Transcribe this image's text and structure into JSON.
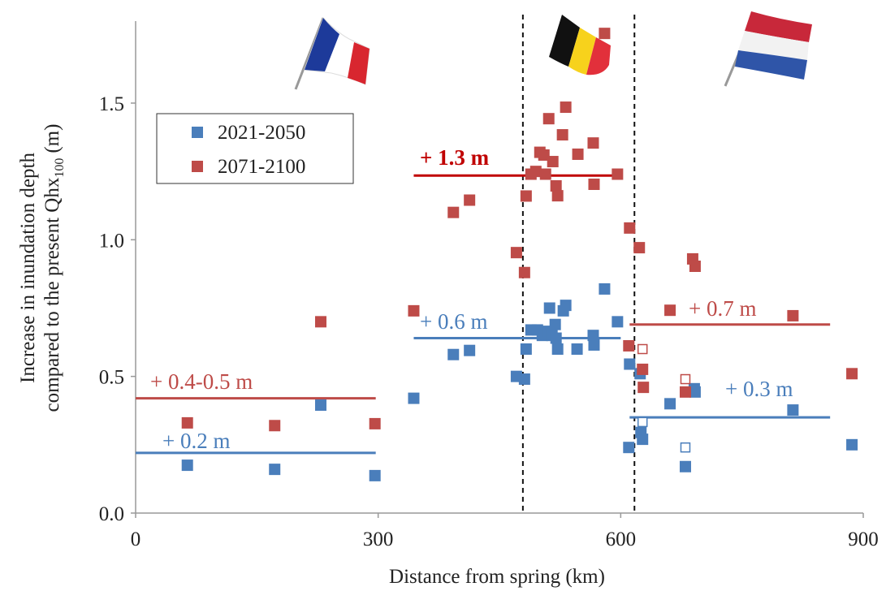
{
  "chart_data": {
    "type": "scatter",
    "xlabel": "Distance from spring (km)",
    "ylabel": {
      "line1": "Increase in inundation depth",
      "line2": "compared to the present Qhx",
      "subscript": "100",
      "suffix": "(m)"
    },
    "xlim": [
      0,
      900
    ],
    "xticks": [
      0,
      300,
      600,
      900
    ],
    "ylim": [
      0,
      1.8
    ],
    "yticks": [
      {
        "value": 0,
        "label": "0.0"
      },
      {
        "value": 0.5,
        "label": "0.5"
      },
      {
        "value": 1,
        "label": "1.0"
      },
      {
        "value": 1.5,
        "label": "1.5"
      }
    ],
    "grid": false,
    "legend": "upper left",
    "series": [
      {
        "name": "2021-2050",
        "color": "#4a7ebb",
        "x": [
          64,
          172,
          229,
          296,
          344,
          393,
          413,
          471,
          481,
          483,
          489,
          497,
          503,
          510,
          515,
          512,
          519,
          520,
          522,
          529,
          532,
          546,
          566,
          567,
          580,
          596,
          610,
          611,
          624,
          625,
          627,
          661,
          680,
          691,
          692,
          813,
          886
        ],
        "values": [
          0.175,
          0.16,
          0.395,
          0.137,
          0.42,
          0.58,
          0.595,
          0.5,
          0.49,
          0.6,
          0.67,
          0.67,
          0.65,
          0.665,
          0.65,
          0.75,
          0.69,
          0.64,
          0.6,
          0.74,
          0.76,
          0.6,
          0.65,
          0.615,
          0.82,
          0.7,
          0.24,
          0.545,
          0.51,
          0.295,
          0.27,
          0.4,
          0.17,
          0.455,
          0.443,
          0.377,
          0.25
        ]
      },
      {
        "name": "2071-2100",
        "color": "#be4b48",
        "x": [
          64,
          172,
          229,
          296,
          344,
          393,
          413,
          471,
          481,
          483,
          489,
          495,
          500,
          505,
          507,
          511,
          516,
          520,
          522,
          528,
          532,
          547,
          566,
          567,
          580,
          596,
          611,
          610,
          623,
          627,
          628,
          661,
          680,
          689,
          692,
          813,
          886
        ],
        "values": [
          0.33,
          0.32,
          0.7,
          0.327,
          0.74,
          1.1,
          1.145,
          0.953,
          0.88,
          1.16,
          1.24,
          1.25,
          1.32,
          1.31,
          1.24,
          1.443,
          1.286,
          1.197,
          1.161,
          1.384,
          1.485,
          1.313,
          1.354,
          1.203,
          1.755,
          1.24,
          1.043,
          0.612,
          0.971,
          0.526,
          0.46,
          0.742,
          0.443,
          0.93,
          0.903,
          0.722,
          0.51
        ]
      },
      {
        "color": "#4a7ebb",
        "marker": "open",
        "x": [
          627,
          680
        ],
        "values": [
          0.333,
          0.24
        ]
      },
      {
        "color": "#be4b48",
        "marker": "open",
        "x": [
          627,
          680
        ],
        "values": [
          0.6,
          0.49
        ]
      }
    ],
    "mean_lines": [
      {
        "label": "+ 0.2 m",
        "color": "#4a7ebb",
        "x": [
          0,
          297
        ],
        "value": 0.22
      },
      {
        "label": "+ 0.4-0.5 m",
        "color": "#be4b48",
        "x": [
          0,
          297
        ],
        "value": 0.42
      },
      {
        "label": "+ 0.6 m",
        "color": "#4a7ebb",
        "x": [
          344,
          600
        ],
        "value": 0.64
      },
      {
        "label": "+ 1.3 m",
        "color": "#c00000",
        "bold": true,
        "x": [
          344,
          595
        ],
        "value": 1.235
      },
      {
        "label": "+ 0.7 m",
        "color": "#be4b48",
        "x": [
          611,
          859
        ],
        "value": 0.69
      },
      {
        "label": "+ 0.3 m",
        "color": "#4a7ebb",
        "x": [
          611,
          859
        ],
        "value": 0.35
      }
    ],
    "borders": [
      479,
      617
    ]
  }
}
